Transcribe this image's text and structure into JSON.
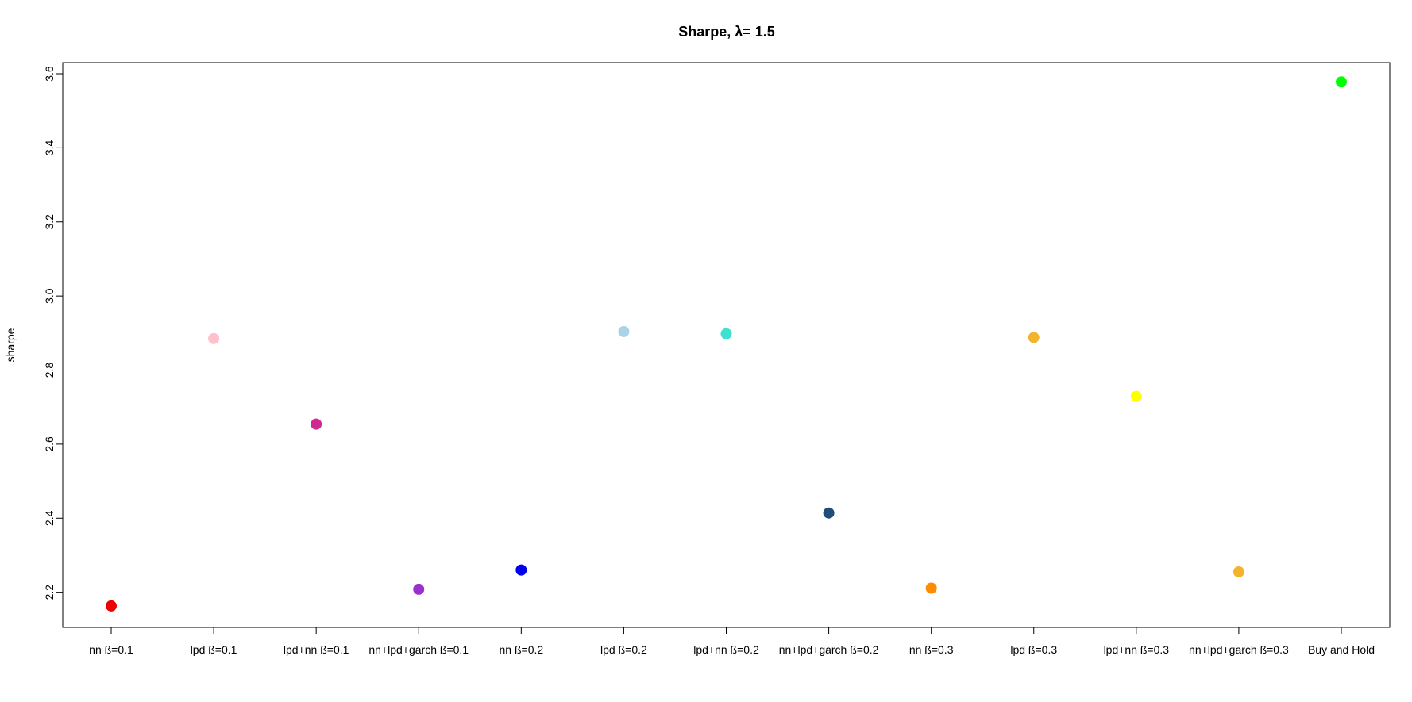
{
  "chart_data": {
    "type": "scatter",
    "title": "Sharpe, λ= 1.5",
    "xlabel": "",
    "ylabel": "sharpe",
    "ylim": [
      2.105,
      3.63
    ],
    "yticks": [
      "2.2",
      "2.4",
      "2.6",
      "2.8",
      "3.0",
      "3.2",
      "3.4",
      "3.6"
    ],
    "ytick_values": [
      2.2,
      2.4,
      2.6,
      2.8,
      3.0,
      3.2,
      3.4,
      3.6
    ],
    "grid": false,
    "categories": [
      "nn ß=0.1",
      "lpd ß=0.1",
      "lpd+nn ß=0.1",
      "nn+lpd+garch ß=0.1",
      "nn ß=0.2",
      "lpd ß=0.2",
      "lpd+nn ß=0.2",
      "nn+lpd+garch ß=0.2",
      "nn ß=0.3",
      "lpd ß=0.3",
      "lpd+nn ß=0.3",
      "nn+lpd+garch ß=0.3",
      "Buy and Hold"
    ],
    "values": [
      2.163,
      2.885,
      2.654,
      2.208,
      2.26,
      2.904,
      2.898,
      2.414,
      2.211,
      2.888,
      2.729,
      2.255,
      3.578
    ],
    "colors": [
      "#ee0000",
      "#ffc0cb",
      "#cd2990",
      "#9932cc",
      "#0000ee",
      "#a8d3e8",
      "#40e0d0",
      "#1f4e7a",
      "#ff8c00",
      "#f4b32c",
      "#ffff00",
      "#f4b32c",
      "#00ff00"
    ]
  }
}
